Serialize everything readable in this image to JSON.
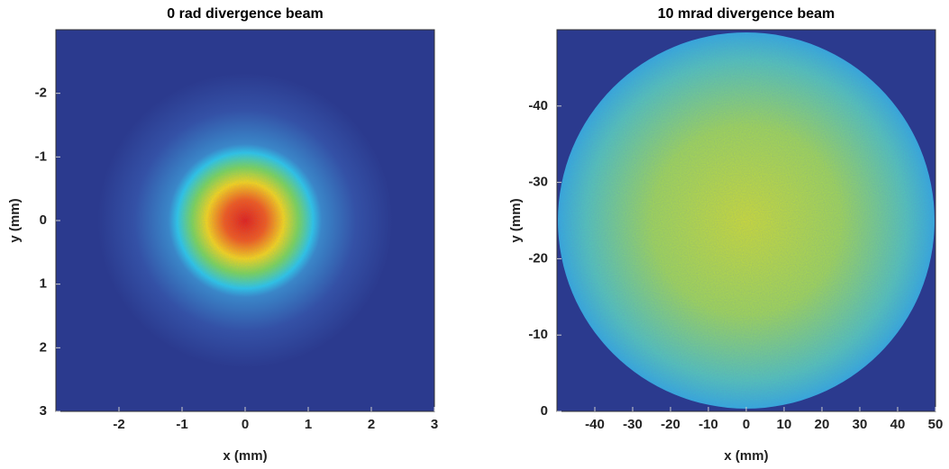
{
  "chart_data": [
    {
      "type": "heatmap",
      "title": "0 rad divergence beam",
      "xlabel": "x (mm)",
      "ylabel": "y (mm)",
      "xlim": [
        -3,
        3
      ],
      "xticks": [
        -2,
        -1,
        0,
        1,
        2,
        3
      ],
      "ylim": [
        3,
        -3
      ],
      "yticks": [
        -2,
        -1,
        0,
        1,
        2,
        3
      ]
    },
    {
      "type": "heatmap",
      "title": "10 mrad divergence beam",
      "xlabel": "x (mm)",
      "ylabel": "y (mm)",
      "xlim": [
        -50,
        50
      ],
      "xticks": [
        -40,
        -30,
        -20,
        -10,
        0,
        10,
        20,
        30,
        40,
        50
      ],
      "ylim": [
        0,
        -50
      ],
      "yticks": [
        -40,
        -30,
        -20,
        -10,
        0
      ]
    }
  ]
}
